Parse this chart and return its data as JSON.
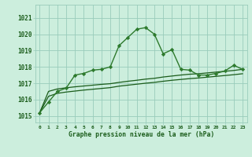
{
  "title": "Graphe pression niveau de la mer (hPa)",
  "bg_color": "#cceedd",
  "grid_color": "#99ccbb",
  "line_color_dark": "#1a5c1a",
  "line_color_mid": "#2d7a2d",
  "x_labels": [
    "0",
    "1",
    "2",
    "3",
    "4",
    "5",
    "6",
    "7",
    "8",
    "9",
    "10",
    "11",
    "12",
    "13",
    "14",
    "15",
    "16",
    "17",
    "18",
    "19",
    "20",
    "21",
    "22",
    "23"
  ],
  "ylim": [
    1014.6,
    1021.8
  ],
  "yticks": [
    1015,
    1016,
    1017,
    1018,
    1019,
    1020,
    1021
  ],
  "series_main": [
    1015.2,
    1015.85,
    1016.5,
    1016.7,
    1017.5,
    1017.6,
    1017.8,
    1017.85,
    1018.0,
    1019.3,
    1019.8,
    1020.3,
    1020.4,
    1020.0,
    1018.8,
    1019.05,
    1017.85,
    1017.8,
    1017.5,
    1017.5,
    1017.6,
    1017.75,
    1018.1,
    1017.85
  ],
  "series_linear1": [
    1015.2,
    1016.5,
    1016.65,
    1016.72,
    1016.78,
    1016.83,
    1016.88,
    1016.93,
    1016.97,
    1017.05,
    1017.12,
    1017.18,
    1017.25,
    1017.3,
    1017.38,
    1017.44,
    1017.5,
    1017.55,
    1017.58,
    1017.63,
    1017.68,
    1017.73,
    1017.78,
    1017.85
  ],
  "series_linear2": [
    1015.2,
    1016.2,
    1016.38,
    1016.46,
    1016.52,
    1016.58,
    1016.63,
    1016.68,
    1016.73,
    1016.82,
    1016.88,
    1016.94,
    1017.0,
    1017.05,
    1017.12,
    1017.18,
    1017.23,
    1017.28,
    1017.32,
    1017.37,
    1017.42,
    1017.47,
    1017.52,
    1017.58
  ]
}
